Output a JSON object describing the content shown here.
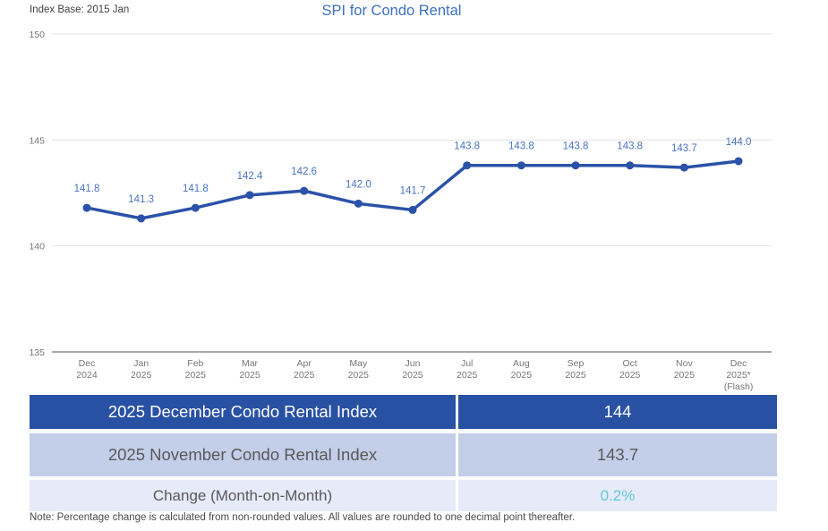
{
  "header": {
    "index_base": "Index Base: 2015 Jan",
    "title": "SPI for Condo Rental"
  },
  "chart_data": {
    "type": "line",
    "title": "SPI for Condo Rental",
    "categories": [
      [
        "Dec",
        "2024"
      ],
      [
        "Jan",
        "2025"
      ],
      [
        "Feb",
        "2025"
      ],
      [
        "Mar",
        "2025"
      ],
      [
        "Apr",
        "2025"
      ],
      [
        "May",
        "2025"
      ],
      [
        "Jun",
        "2025"
      ],
      [
        "Jul",
        "2025"
      ],
      [
        "Aug",
        "2025"
      ],
      [
        "Sep",
        "2025"
      ],
      [
        "Oct",
        "2025"
      ],
      [
        "Nov",
        "2025"
      ],
      [
        "Dec",
        "2025*",
        "(Flash)"
      ]
    ],
    "values": [
      141.8,
      141.3,
      141.8,
      142.4,
      142.6,
      142.0,
      141.7,
      143.8,
      143.8,
      143.8,
      143.8,
      143.7,
      144.0
    ],
    "xlabel": "",
    "ylabel": "",
    "ylim": [
      135,
      150
    ],
    "yticks": [
      150,
      145,
      140,
      135
    ],
    "grid": true,
    "legend": "none"
  },
  "colors": {
    "line": "#2b52a8",
    "point_label": "#4a72c2",
    "title": "#3d70c0",
    "gridline": "#e3e3e3",
    "axis_line": "#a8a8a8",
    "tick_text": "#767676",
    "row_dark_bg": "#2951a3",
    "row_medium_bg": "#c3cee9",
    "row_light_bg": "#e7eaf8",
    "change_value": "#62c9d8"
  },
  "table": {
    "rows": [
      {
        "label": "2025 December Condo Rental Index",
        "value": "144"
      },
      {
        "label": "2025 November Condo Rental Index",
        "value": "143.7"
      },
      {
        "label": "Change (Month-on-Month)",
        "value": "0.2%"
      }
    ]
  },
  "note": "Note: Percentage change is calculated from non-rounded values.  All values are rounded to one decimal point thereafter."
}
